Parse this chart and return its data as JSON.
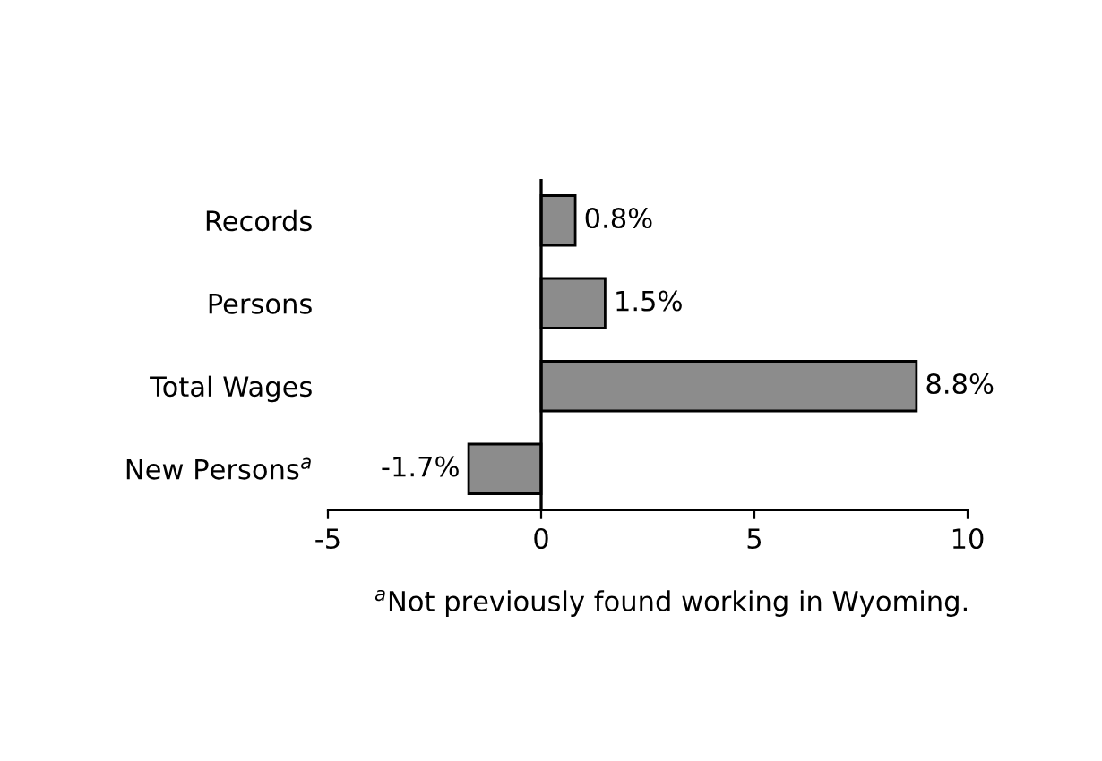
{
  "chart_data": {
    "type": "bar",
    "orientation": "horizontal",
    "categories": [
      "Records",
      "Persons",
      "Total Wages",
      "New Persons$^{a}$"
    ],
    "values": [
      0.8,
      1.5,
      8.8,
      -1.7
    ],
    "value_labels": [
      "0.8%",
      "1.5%",
      "8.8%",
      "-1.7%"
    ],
    "color": "#8c8c8c",
    "xlim": [
      -5,
      10
    ],
    "xticks": [
      -5,
      0,
      5,
      10
    ],
    "ref_lines": [
      {
        "axis": "x",
        "value": 0,
        "color": "#000000"
      }
    ],
    "annotations": [
      "$^{a}$Not previously found working in Wyoming."
    ],
    "grid": false,
    "legend": false
  }
}
